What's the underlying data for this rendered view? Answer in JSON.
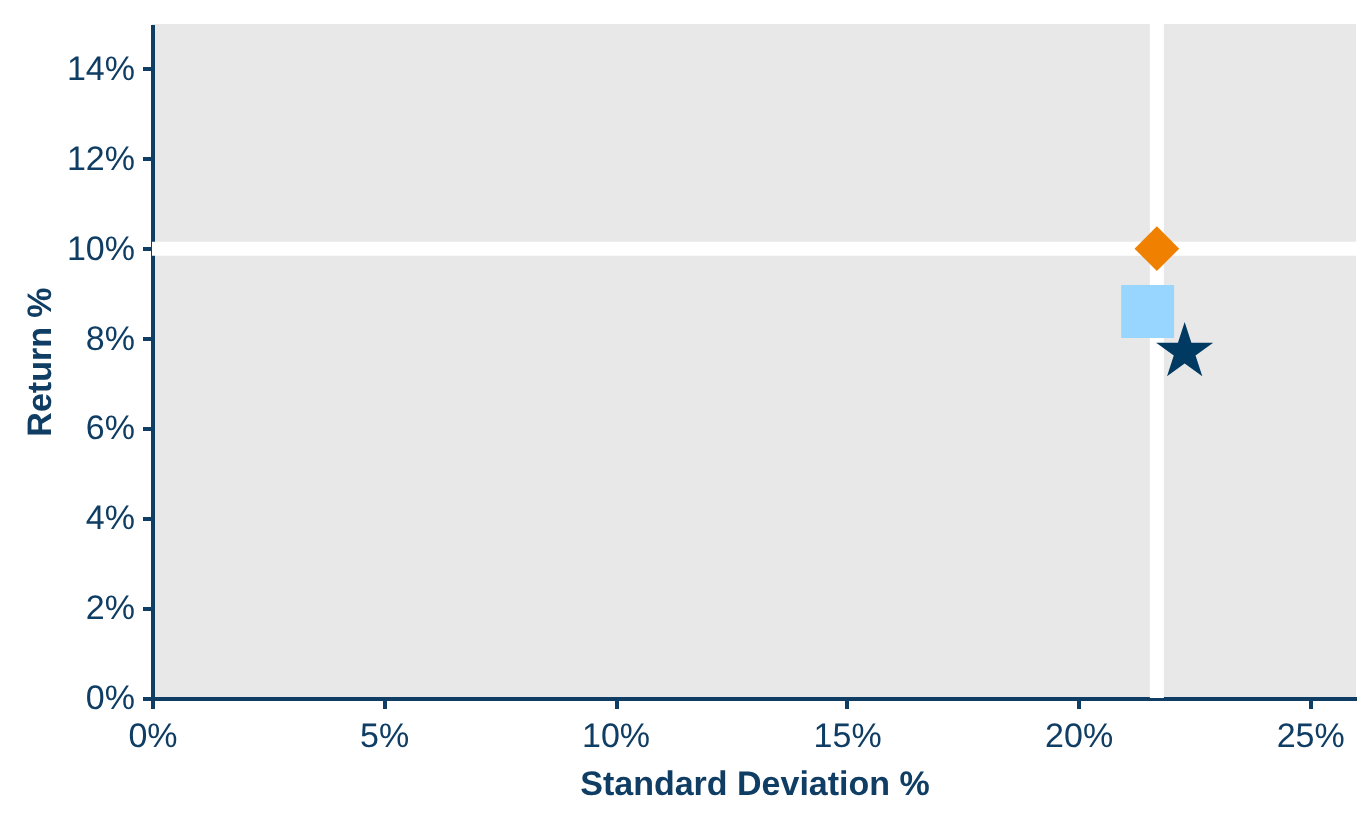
{
  "chart_data": {
    "type": "scatter",
    "xlabel": "Standard Deviation %",
    "ylabel": "Return %",
    "xlim": [
      0,
      26
    ],
    "ylim": [
      0,
      15
    ],
    "xticks": [
      {
        "value": 0,
        "label": "0%"
      },
      {
        "value": 5,
        "label": "5%"
      },
      {
        "value": 10,
        "label": "10%"
      },
      {
        "value": 15,
        "label": "15%"
      },
      {
        "value": 20,
        "label": "20%"
      },
      {
        "value": 25,
        "label": "25%"
      }
    ],
    "yticks": [
      {
        "value": 0,
        "label": "0%"
      },
      {
        "value": 2,
        "label": "2%"
      },
      {
        "value": 4,
        "label": "4%"
      },
      {
        "value": 6,
        "label": "6%"
      },
      {
        "value": 8,
        "label": "8%"
      },
      {
        "value": 10,
        "label": "10%"
      },
      {
        "value": 12,
        "label": "12%"
      },
      {
        "value": 14,
        "label": "14%"
      }
    ],
    "grid": false,
    "ref_lines": [
      {
        "axis": "x",
        "value": 21.7,
        "color": "#ffffff"
      },
      {
        "axis": "y",
        "value": 10.0,
        "color": "#ffffff"
      }
    ],
    "series": [
      {
        "color": "#f08000",
        "marker": "diamond",
        "x": [
          21.7
        ],
        "values": [
          10.0
        ]
      },
      {
        "color": "#99d6ff",
        "marker": "square",
        "x": [
          21.5
        ],
        "values": [
          8.6
        ]
      },
      {
        "color": "#003a63",
        "marker": "star",
        "x": [
          22.3
        ],
        "values": [
          7.7
        ]
      }
    ]
  }
}
